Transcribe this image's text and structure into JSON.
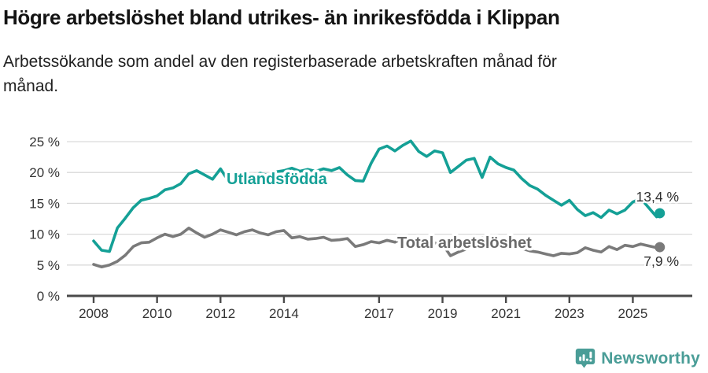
{
  "header": {
    "title": "Högre arbetslöshet bland utrikes- än inrikesfödda i Klippan",
    "subtitle": "Arbetssökande som andel av den registerbaserade arbetskraften månad för månad."
  },
  "chart_data": {
    "type": "line",
    "title": "Högre arbetslöshet bland utrikes- än inrikesfödda i Klippan",
    "subtitle": "Arbetssökande som andel av den registerbaserade arbetskraften månad för månad.",
    "x_start": 2008,
    "x_step": 0.25,
    "x_last": 2025.85,
    "x_ticks": [
      2008,
      2010,
      2012,
      2014,
      2017,
      2019,
      2021,
      2023,
      2025
    ],
    "y_ticks": [
      0,
      5,
      10,
      15,
      20,
      25
    ],
    "y_tick_suffix": " %",
    "ylim": [
      0,
      27
    ],
    "grid": "horizontal-only",
    "legend": "inline-labels",
    "series": [
      {
        "name": "Total arbetslöshet",
        "inline_label": "Total arbetslöshet",
        "color": "#7a7a7a",
        "label_color": "#6a6a6a",
        "end_label": "7,9 %",
        "end_value": 7.9,
        "values": [
          5.1,
          4.7,
          5.0,
          5.6,
          6.6,
          8.0,
          8.6,
          8.7,
          9.4,
          10.0,
          9.6,
          10.0,
          11.0,
          10.2,
          9.5,
          10.0,
          10.7,
          10.3,
          9.9,
          10.4,
          10.7,
          10.2,
          9.9,
          10.4,
          10.6,
          9.4,
          9.6,
          9.2,
          9.3,
          9.5,
          9.0,
          9.1,
          9.3,
          8.0,
          8.3,
          8.8,
          8.6,
          9.0,
          8.7,
          9.4,
          9.1,
          8.7,
          8.5,
          8.6,
          8.4,
          6.5,
          7.1,
          7.6,
          8.2,
          9.4,
          9.0,
          8.7,
          8.5,
          8.1,
          7.7,
          7.3,
          7.1,
          6.8,
          6.5,
          6.9,
          6.8,
          7.0,
          7.8,
          7.4,
          7.1,
          8.0,
          7.5,
          8.2,
          8.0,
          8.4,
          8.1,
          7.8,
          7.9
        ]
      },
      {
        "name": "Utlandsfödda",
        "inline_label": "Utlandsfödda",
        "color": "#14a096",
        "label_color": "#14a096",
        "end_label": "13,4 %",
        "end_value": 13.4,
        "values": [
          8.9,
          7.4,
          7.2,
          11.0,
          12.6,
          14.3,
          15.5,
          15.8,
          16.2,
          17.2,
          17.5,
          18.2,
          19.8,
          20.3,
          19.6,
          18.9,
          20.6,
          18.6,
          19.3,
          19.8,
          19.3,
          19.9,
          19.5,
          20.1,
          20.3,
          20.7,
          20.2,
          20.5,
          20.2,
          20.6,
          20.3,
          20.8,
          19.6,
          18.7,
          18.6,
          21.5,
          23.8,
          24.3,
          23.5,
          24.4,
          25.1,
          23.4,
          22.6,
          23.5,
          23.2,
          20.0,
          21.0,
          22.0,
          22.3,
          19.2,
          22.5,
          21.4,
          20.8,
          20.4,
          19.0,
          17.9,
          17.3,
          16.3,
          15.5,
          14.7,
          15.5,
          14.0,
          13.0,
          13.5,
          12.7,
          13.9,
          13.3,
          13.9,
          15.2,
          15.8,
          14.3,
          12.8,
          13.4
        ]
      }
    ]
  },
  "colors": {
    "accent_teal": "#14a096",
    "line_gray": "#7a7a7a",
    "axis_dark": "#4a4a4a",
    "grid_light": "#d9d9d9",
    "tick_text": "#333333",
    "brand_teal": "#4a9d97"
  },
  "footer": {
    "brand": "Newsworthy",
    "logo_icon": "newsworthy-speech-bubble-chart-icon"
  }
}
